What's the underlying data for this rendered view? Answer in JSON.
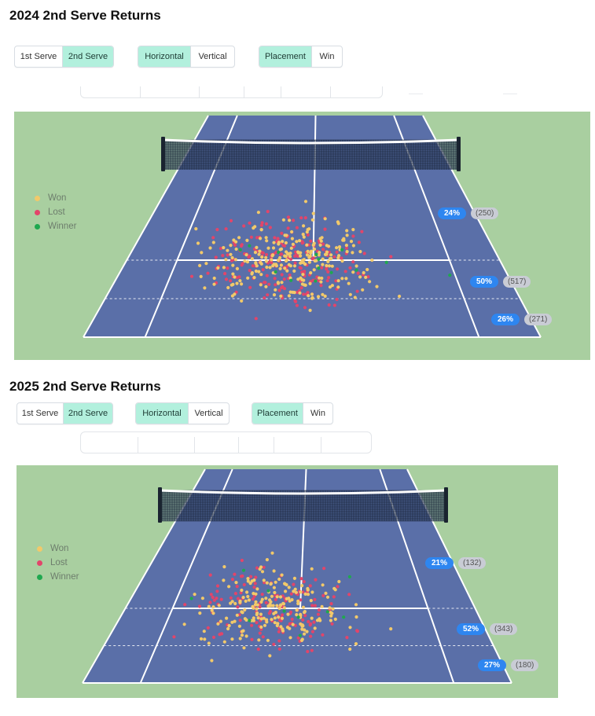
{
  "sections": [
    {
      "title": "2024 2nd Serve Returns",
      "serve_toggle": [
        "1st Serve",
        "2nd Serve"
      ],
      "serve_active": 1,
      "orientation_toggle": [
        "Horizontal",
        "Vertical"
      ],
      "orientation_active": 0,
      "mode_toggle": [
        "Placement",
        "Win"
      ],
      "mode_active": 0,
      "legend": [
        "Won",
        "Lost",
        "Winner"
      ],
      "zones": [
        {
          "pct": "24%",
          "count": "(250)"
        },
        {
          "pct": "50%",
          "count": "(517)"
        },
        {
          "pct": "26%",
          "count": "(271)"
        }
      ],
      "shots": {
        "won": 250,
        "lost": 200,
        "winner": 14
      }
    },
    {
      "title": "2025 2nd Serve Returns",
      "serve_toggle": [
        "1st Serve",
        "2nd Serve"
      ],
      "serve_active": 1,
      "orientation_toggle": [
        "Horizontal",
        "Vertical"
      ],
      "orientation_active": 0,
      "mode_toggle": [
        "Placement",
        "Win"
      ],
      "mode_active": 0,
      "legend": [
        "Won",
        "Lost",
        "Winner"
      ],
      "zones": [
        {
          "pct": "21%",
          "count": "(132)"
        },
        {
          "pct": "52%",
          "count": "(343)"
        },
        {
          "pct": "27%",
          "count": "(180)"
        }
      ],
      "shots": {
        "won": 200,
        "lost": 150,
        "winner": 10
      }
    }
  ],
  "colors": {
    "won": "#f2c96a",
    "lost": "#e2456a",
    "winner": "#1fa84f",
    "court": "#5a6fa8",
    "surround": "#a9cfa0",
    "pill": "#2e86f0",
    "toggle_active": "#b2f0dd"
  }
}
